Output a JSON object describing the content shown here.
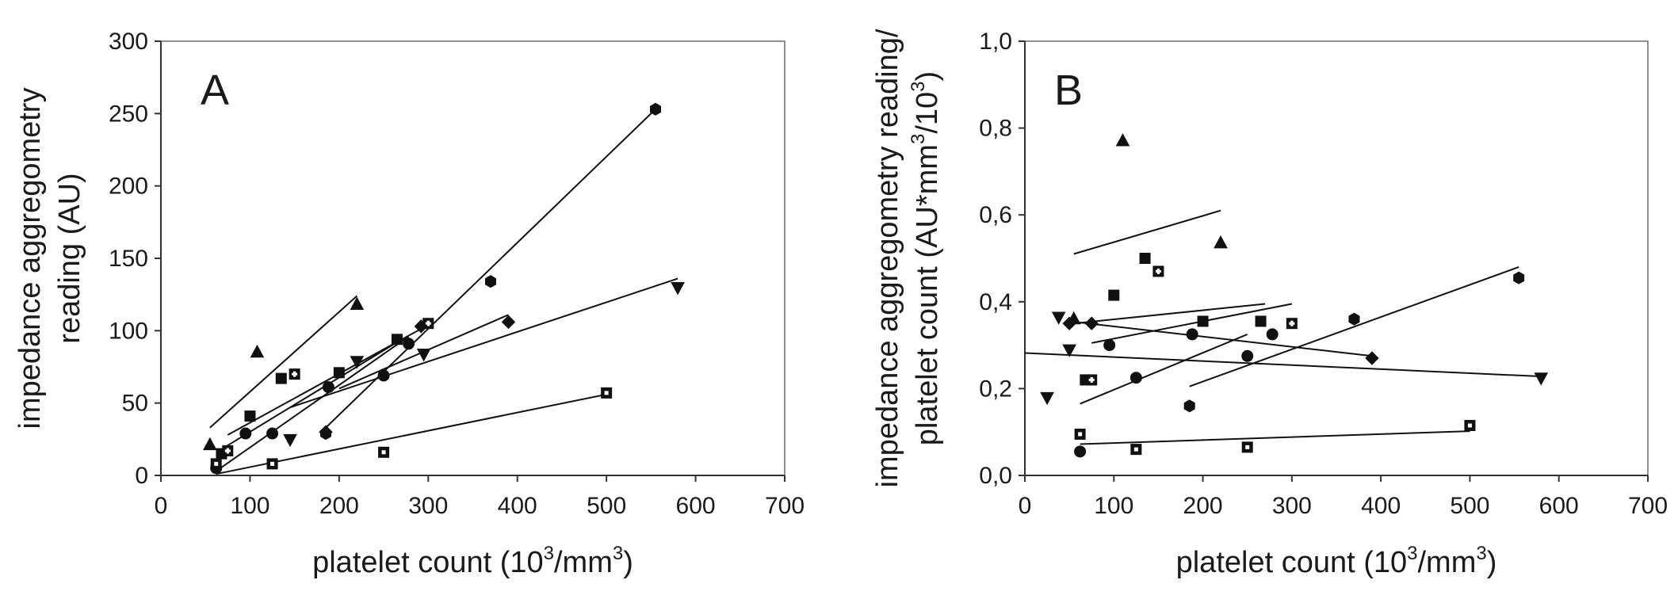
{
  "chart_data": [
    {
      "type": "scatter",
      "panel_label": "A",
      "xlabel": {
        "main": "platelet count (10",
        "sup": "3",
        "tail": "/mm",
        "sup2": "3",
        "end": ")"
      },
      "ylabel_lines": [
        "impedance aggregometry",
        "reading (AU)"
      ],
      "xlim": [
        0,
        700
      ],
      "ylim": [
        0,
        300
      ],
      "xticks": [
        0,
        100,
        200,
        300,
        400,
        500,
        600,
        700
      ],
      "yticks": [
        0,
        50,
        100,
        150,
        200,
        250,
        300
      ],
      "xtick_labels": [
        "0",
        "100",
        "200",
        "300",
        "400",
        "500",
        "600",
        "700"
      ],
      "ytick_labels": [
        "0",
        "50",
        "100",
        "150",
        "200",
        "250",
        "300"
      ],
      "series": [
        {
          "name": "triangle",
          "marker": "triangle-up",
          "points": [
            [
              55,
              21
            ],
            [
              108,
              85
            ],
            [
              220,
              118
            ]
          ],
          "fit": [
            [
              55,
              33
            ],
            [
              220,
              124
            ]
          ]
        },
        {
          "name": "square",
          "marker": "square",
          "points": [
            [
              68,
              15
            ],
            [
              100,
              41
            ],
            [
              135,
              67
            ],
            [
              200,
              71
            ],
            [
              265,
              94
            ]
          ],
          "fit": [
            [
              65,
              17
            ],
            [
              265,
              92
            ]
          ]
        },
        {
          "name": "circle",
          "marker": "circle",
          "points": [
            [
              62,
              5
            ],
            [
              95,
              29
            ],
            [
              125,
              29
            ],
            [
              188,
              61
            ],
            [
              250,
              69
            ],
            [
              278,
              91
            ]
          ],
          "fit": [
            [
              62,
              3
            ],
            [
              278,
              96
            ]
          ]
        },
        {
          "name": "open-square",
          "marker": "open-square",
          "points": [
            [
              75,
              17
            ],
            [
              150,
              70
            ],
            [
              300,
              105
            ]
          ],
          "fit": [
            [
              75,
              28
            ],
            [
              300,
              104
            ]
          ]
        },
        {
          "name": "down-triangle",
          "marker": "triangle-down",
          "points": [
            [
              145,
              25
            ],
            [
              220,
              79
            ],
            [
              295,
              84
            ],
            [
              580,
              130
            ]
          ],
          "fit": [
            [
              145,
              47
            ],
            [
              580,
              136
            ]
          ]
        },
        {
          "name": "diamond",
          "marker": "diamond",
          "points": [
            [
              185,
              30
            ],
            [
              292,
              103
            ],
            [
              390,
              106
            ]
          ],
          "fit": [
            [
              200,
              60
            ],
            [
              390,
              111
            ]
          ]
        },
        {
          "name": "hexagon",
          "marker": "hexagon",
          "points": [
            [
              185,
              29
            ],
            [
              370,
              134
            ],
            [
              555,
              253
            ]
          ],
          "fit": [
            [
              185,
              33
            ],
            [
              555,
              253
            ]
          ]
        },
        {
          "name": "dotted-square",
          "marker": "dotted-square",
          "points": [
            [
              62,
              8
            ],
            [
              125,
              8
            ],
            [
              250,
              16
            ],
            [
              500,
              57
            ]
          ],
          "fit": [
            [
              62,
              1
            ],
            [
              500,
              56
            ]
          ]
        }
      ]
    },
    {
      "type": "scatter",
      "panel_label": "B",
      "xlabel": {
        "main": "platelet count (10",
        "sup": "3",
        "tail": "/mm",
        "sup2": "3",
        "end": ")"
      },
      "ylabel_lines": [
        {
          "main": "impedance aggregometry reading/"
        },
        {
          "main": "platelet count (AU*mm",
          "sup": "3",
          "tail": "/10",
          "sup2": "3",
          "end": ")"
        }
      ],
      "xlim": [
        0,
        700
      ],
      "ylim": [
        0,
        1.0
      ],
      "xticks": [
        0,
        100,
        200,
        300,
        400,
        500,
        600,
        700
      ],
      "yticks": [
        0,
        0.2,
        0.4,
        0.6,
        0.8,
        1.0
      ],
      "xtick_labels": [
        "0",
        "100",
        "200",
        "300",
        "400",
        "500",
        "600",
        "700"
      ],
      "ytick_labels": [
        "0,0",
        "0,2",
        "0,4",
        "0,6",
        "0,8",
        "1,0"
      ],
      "series": [
        {
          "name": "triangle",
          "marker": "triangle-up",
          "points": [
            [
              55,
              0.36
            ],
            [
              110,
              0.77
            ],
            [
              220,
              0.535
            ]
          ],
          "fit": [
            [
              55,
              0.51
            ],
            [
              220,
              0.61
            ]
          ]
        },
        {
          "name": "square",
          "marker": "square",
          "points": [
            [
              68,
              0.22
            ],
            [
              100,
              0.415
            ],
            [
              135,
              0.5
            ],
            [
              200,
              0.355
            ],
            [
              265,
              0.355
            ]
          ],
          "fit": [
            [
              55,
              0.35
            ],
            [
              270,
              0.395
            ]
          ]
        },
        {
          "name": "circle",
          "marker": "circle",
          "points": [
            [
              62,
              0.055
            ],
            [
              95,
              0.3
            ],
            [
              125,
              0.225
            ],
            [
              188,
              0.325
            ],
            [
              250,
              0.275
            ],
            [
              278,
              0.325
            ]
          ],
          "fit": [
            [
              62,
              0.165
            ],
            [
              250,
              0.325
            ]
          ]
        },
        {
          "name": "open-square",
          "marker": "open-square",
          "points": [
            [
              75,
              0.22
            ],
            [
              150,
              0.47
            ],
            [
              300,
              0.35
            ]
          ],
          "fit": [
            [
              75,
              0.305
            ],
            [
              300,
              0.395
            ]
          ]
        },
        {
          "name": "down-triangle",
          "marker": "triangle-down",
          "points": [
            [
              25,
              0.18
            ],
            [
              38,
              0.365
            ],
            [
              50,
              0.29
            ],
            [
              580,
              0.225
            ]
          ],
          "fit": [
            [
              0,
              0.282
            ],
            [
              580,
              0.228
            ]
          ]
        },
        {
          "name": "diamond",
          "marker": "diamond",
          "points": [
            [
              50,
              0.35
            ],
            [
              75,
              0.35
            ],
            [
              390,
              0.27
            ]
          ],
          "fit": [
            [
              50,
              0.355
            ],
            [
              390,
              0.275
            ]
          ]
        },
        {
          "name": "hexagon",
          "marker": "hexagon",
          "points": [
            [
              185,
              0.16
            ],
            [
              370,
              0.36
            ],
            [
              555,
              0.455
            ]
          ],
          "fit": [
            [
              185,
              0.205
            ],
            [
              555,
              0.48
            ]
          ]
        },
        {
          "name": "dotted-square",
          "marker": "dotted-square",
          "points": [
            [
              62,
              0.095
            ],
            [
              125,
              0.06
            ],
            [
              250,
              0.065
            ],
            [
              500,
              0.115
            ]
          ],
          "fit": [
            [
              62,
              0.072
            ],
            [
              500,
              0.102
            ]
          ]
        }
      ]
    }
  ]
}
